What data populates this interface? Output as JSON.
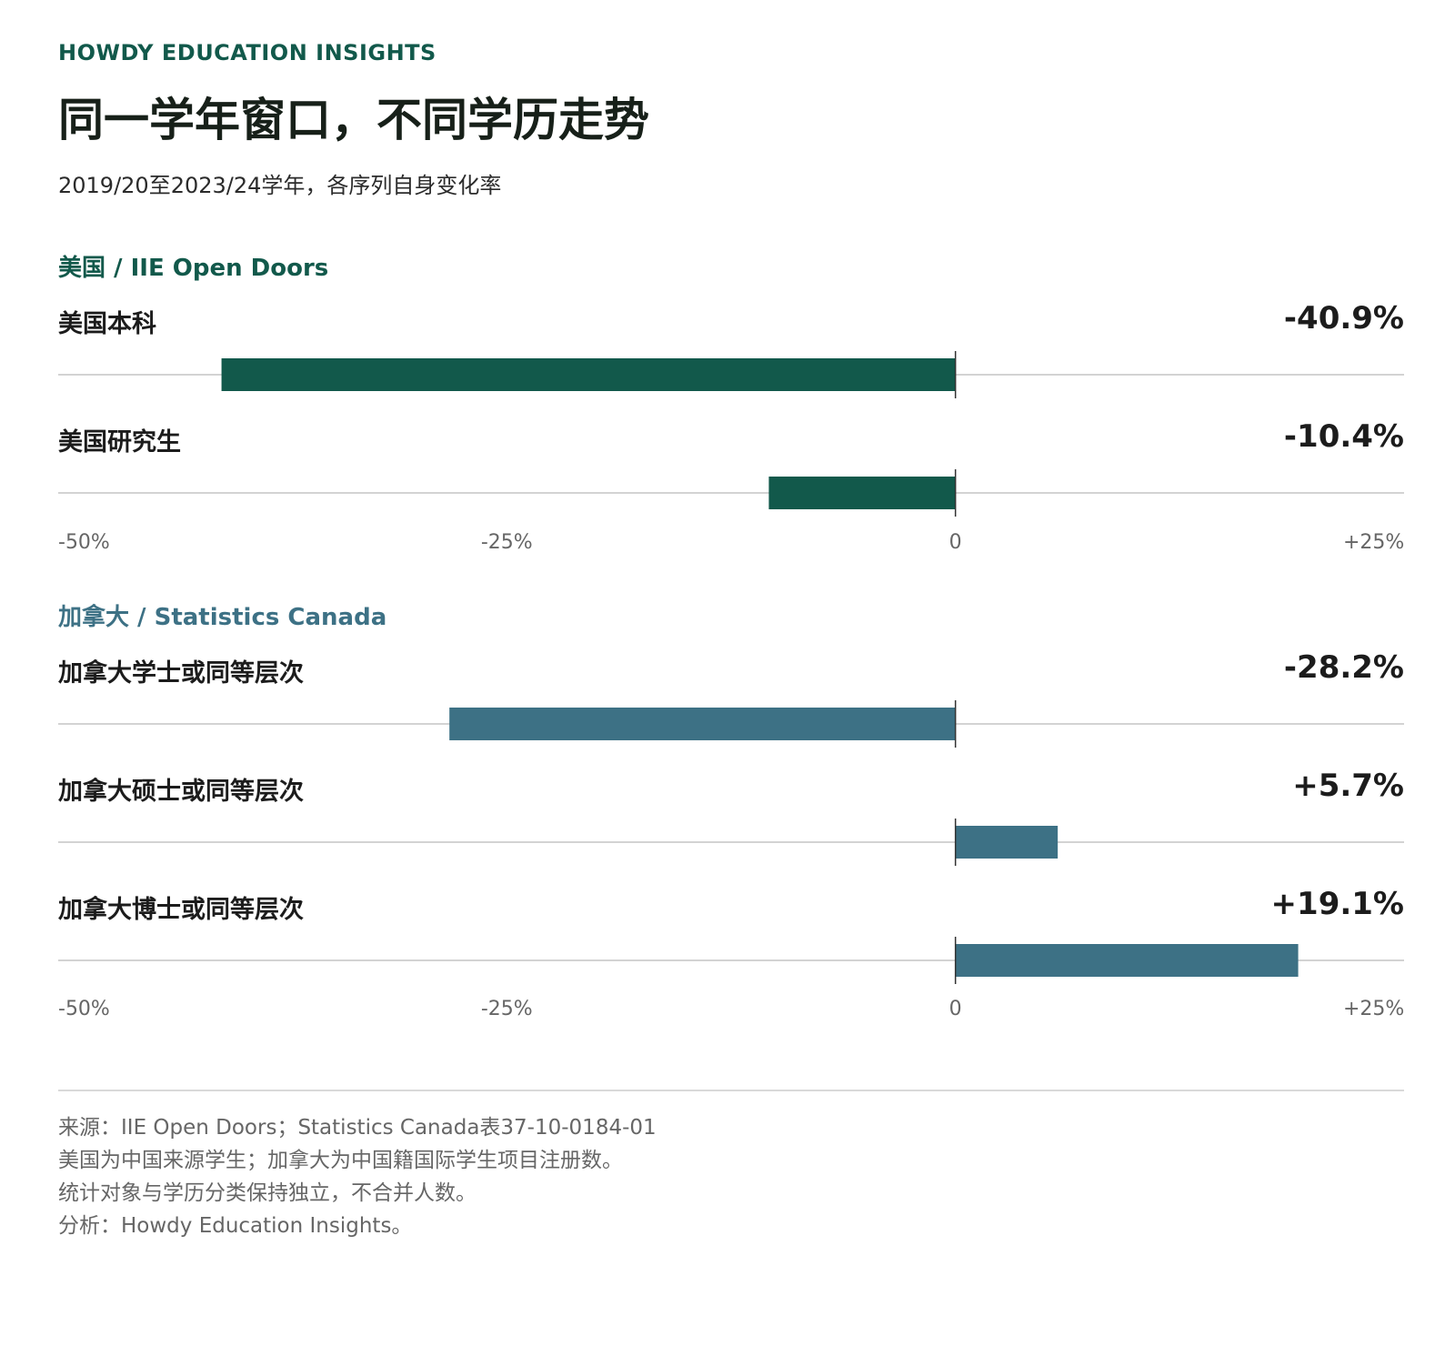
{
  "brand": "HOWDY EDUCATION INSIGHTS",
  "title": "同一学年窗口，不同学历走势",
  "subtitle": "2019/20至2023/24学年，各序列自身变化率",
  "colors": {
    "us": "#12594b",
    "canada": "#3d7185",
    "baseline": "#d3d3d3",
    "zero": "#333333"
  },
  "chart_data": [
    {
      "type": "bar",
      "orientation": "horizontal",
      "title": "美国 / IIE Open Doors",
      "color": "#12594b",
      "categories": [
        "美国本科",
        "美国研究生"
      ],
      "values": [
        -40.9,
        -10.4
      ],
      "value_labels": [
        "-40.9%",
        "-10.4%"
      ],
      "xlim": [
        -50,
        25
      ],
      "ticks": [
        -50,
        -25,
        0,
        25
      ],
      "tick_labels": [
        "-50%",
        "-25%",
        "0",
        "+25%"
      ]
    },
    {
      "type": "bar",
      "orientation": "horizontal",
      "title": "加拿大 / Statistics Canada",
      "color": "#3d7185",
      "categories": [
        "加拿大学士或同等层次",
        "加拿大硕士或同等层次",
        "加拿大博士或同等层次"
      ],
      "values": [
        -28.2,
        5.7,
        19.1
      ],
      "value_labels": [
        "-28.2%",
        "+5.7%",
        "+19.1%"
      ],
      "xlim": [
        -50,
        25
      ],
      "ticks": [
        -50,
        -25,
        0,
        25
      ],
      "tick_labels": [
        "-50%",
        "-25%",
        "0",
        "+25%"
      ]
    }
  ],
  "notes": [
    "来源：IIE Open Doors；Statistics Canada表37-10-0184-01",
    "美国为中国来源学生；加拿大为中国籍国际学生项目注册数。",
    "统计对象与学历分类保持独立，不合并人数。",
    "分析：Howdy Education Insights。"
  ]
}
